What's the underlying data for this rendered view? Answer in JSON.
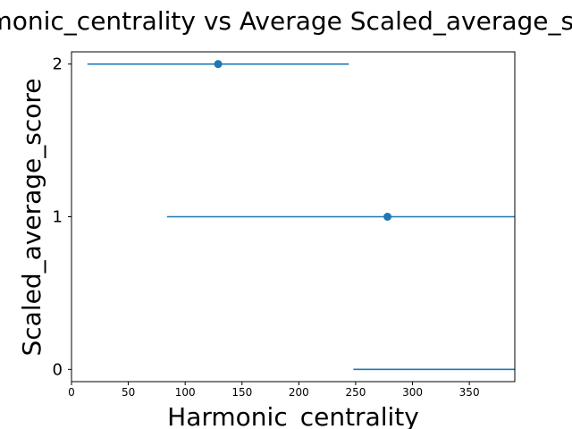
{
  "chart_data": {
    "type": "scatter",
    "title": "Harmonic_centrality vs Average Scaled_average_score",
    "xlabel": "Harmonic_centrality",
    "ylabel": "Scaled_average_score",
    "xlim": [
      0,
      390
    ],
    "ylim": [
      -0.08,
      2.08
    ],
    "xticks": [
      0,
      50,
      100,
      150,
      200,
      250,
      300,
      350
    ],
    "yticks": [
      0,
      1,
      2
    ],
    "grid": false,
    "series_color": "#1f77b4",
    "points": [
      {
        "y": 2,
        "x": 129,
        "xerr_low": 14,
        "xerr_high": 244
      },
      {
        "y": 1,
        "x": 278,
        "xerr_low": 84,
        "xerr_high": 472
      },
      {
        "y": 0,
        "x": null,
        "xerr_low": 248,
        "xerr_high": 520
      }
    ]
  }
}
